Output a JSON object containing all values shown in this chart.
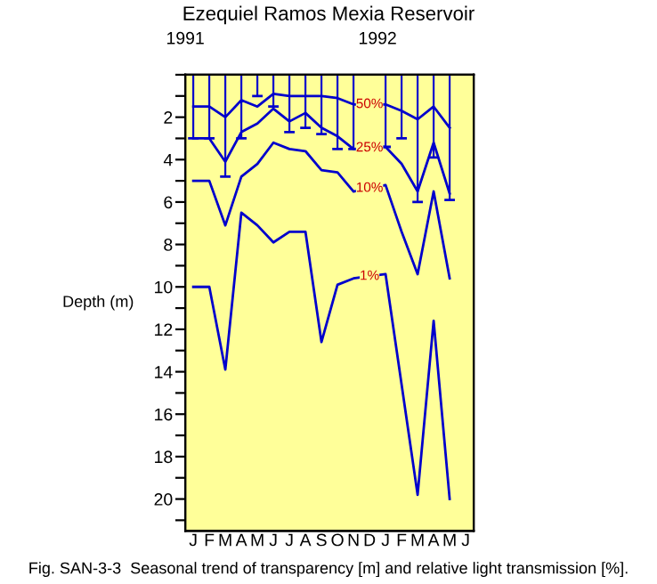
{
  "chart_data": {
    "type": "line",
    "title": "Ezequiel Ramos Mexia Reservoir",
    "ylabel": "Depth (m)",
    "categories": [
      "J",
      "F",
      "M",
      "A",
      "M",
      "J",
      "J",
      "A",
      "S",
      "O",
      "N",
      "D",
      "J",
      "F",
      "M",
      "A",
      "M",
      "J"
    ],
    "series": [
      {
        "type": "bar",
        "color": "#0000cc",
        "values": [
          3.0,
          3.0,
          4.8,
          3.0,
          1.0,
          1.5,
          2.7,
          2.5,
          2.8,
          3.5,
          3.5,
          null,
          3.4,
          3.0,
          6.0,
          3.9,
          5.9,
          null
        ]
      },
      {
        "name": "50%",
        "color": "#0000cc",
        "values": [
          1.5,
          1.5,
          2.0,
          1.2,
          1.5,
          0.9,
          1.0,
          1.0,
          1.0,
          1.1,
          1.4,
          null,
          1.4,
          1.7,
          2.1,
          1.5,
          2.5,
          null
        ]
      },
      {
        "name": "25%",
        "color": "#0000cc",
        "values": [
          3.0,
          3.0,
          4.1,
          2.7,
          2.3,
          1.6,
          2.2,
          1.8,
          2.5,
          2.9,
          3.5,
          null,
          3.4,
          4.2,
          5.5,
          3.2,
          5.6,
          null
        ]
      },
      {
        "name": "10%",
        "color": "#0000cc",
        "values": [
          5.0,
          5.0,
          7.1,
          4.8,
          4.2,
          3.2,
          3.5,
          3.6,
          4.5,
          4.6,
          5.5,
          null,
          5.2,
          7.4,
          9.4,
          5.5,
          9.6,
          null
        ]
      },
      {
        "name": "1%",
        "color": "#0000cc",
        "values": [
          10.0,
          10.0,
          13.9,
          6.5,
          7.1,
          7.9,
          7.4,
          7.4,
          12.6,
          9.9,
          9.6,
          null,
          9.4,
          null,
          19.8,
          11.6,
          20.0,
          null
        ]
      }
    ],
    "x2lim": [
      1991,
      1992.5
    ],
    "x2ticks": [
      1991,
      1992
    ],
    "ylim": [
      21.5,
      0
    ],
    "yticks": [
      {
        "value": 0,
        "label": null
      },
      {
        "value": 1,
        "label": null
      },
      2,
      {
        "value": 3,
        "label": null
      },
      4,
      {
        "value": 5,
        "label": null
      },
      6,
      {
        "value": 7,
        "label": null
      },
      8,
      {
        "value": 9,
        "label": null
      },
      10,
      {
        "value": 11,
        "label": null
      },
      12,
      {
        "value": 13,
        "label": null
      },
      14,
      {
        "value": 15,
        "label": null
      },
      16,
      {
        "value": 17,
        "label": null
      },
      18,
      {
        "value": 19,
        "label": null
      },
      20,
      {
        "value": 21,
        "label": null
      }
    ],
    "grid": false,
    "marker": "none",
    "line_style": "solid",
    "annotations": [
      "Fig. SAN-3-3  Seasonal trend of transparency [m] and relative light transmission [%]."
    ]
  }
}
